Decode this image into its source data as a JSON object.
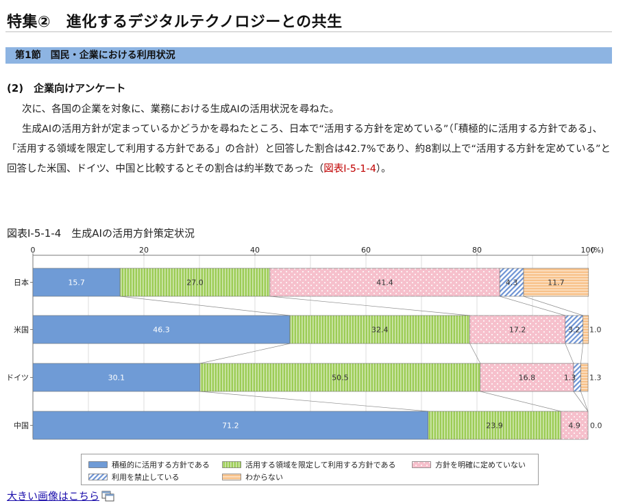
{
  "page": {
    "title": "特集②　進化するデジタルテクノロジーとの共生",
    "section_band": "第1節　国民・企業における利用状況",
    "subheading": "(2)　企業向けアンケート",
    "paragraph1": "次に、各国の企業を対象に、業務における生成AIの活用状況を尋ねた。",
    "paragraph2_text": "生成AIの活用方針が定まっているかどうかを尋ねたところ、日本で“活用する方針を定めている”（「積極的に活用する方針である」、「活用する領域を限定して利用する方針である」の合計）と回答した割合は42.7%であり、約8割以上で“活用する方針を定めている”と回答した米国、ドイツ、中国と比較するとその割合は約半数であった（",
    "paragraph2_link": "図表Ⅰ-5-1-4",
    "paragraph2_end": "）。",
    "figure_caption": "図表Ⅰ-5-1-4　生成AIの活用方針策定状況",
    "big_image_link": "大きい画像はこちら"
  },
  "colors": {
    "section_band": "#8db4e2",
    "link": "#c00000",
    "big_image_link": "#1a0dab"
  },
  "chart_data": {
    "type": "bar",
    "orientation": "horizontal",
    "stacked": true,
    "x_unit": "(%)",
    "xlim": [
      0,
      100
    ],
    "x_ticks": [
      0,
      20,
      40,
      60,
      80,
      100
    ],
    "grid": true,
    "categories": [
      "日本",
      "米国",
      "ドイツ",
      "中国"
    ],
    "series": [
      {
        "name": "積極的に活用する方針である",
        "values": [
          15.7,
          46.3,
          30.1,
          71.2
        ],
        "color": "#6f9bd6",
        "pattern": "solid"
      },
      {
        "name": "活用する領域を限定して利用する方針である",
        "values": [
          27.0,
          32.4,
          50.5,
          23.9
        ],
        "color": "#9ccc55",
        "pattern": "vertical-stripes"
      },
      {
        "name": "方針を明確に定めていない",
        "values": [
          41.4,
          17.2,
          16.8,
          4.9
        ],
        "color": "#f6c0cc",
        "pattern": "dots"
      },
      {
        "name": "利用を禁止している",
        "values": [
          4.3,
          3.2,
          1.3,
          0.0
        ],
        "color": "#6d93d4",
        "pattern": "diagonal-hatch"
      },
      {
        "name": "わからない",
        "values": [
          11.7,
          1.0,
          1.3,
          0.0
        ],
        "color": "#f8c28a",
        "pattern": "horizontal-stripes"
      }
    ],
    "data_labels": [
      [
        "15.7",
        "27.0",
        "41.4",
        "4.3",
        "11.7"
      ],
      [
        "46.3",
        "32.4",
        "17.2",
        "3.2",
        "1.0"
      ],
      [
        "30.1",
        "50.5",
        "16.8",
        "1.3",
        "1.3"
      ],
      [
        "71.2",
        "23.9",
        "4.9",
        "",
        "0.0"
      ]
    ],
    "legend_position": "bottom"
  }
}
